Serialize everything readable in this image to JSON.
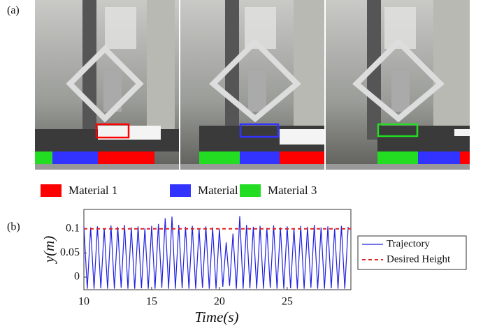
{
  "panel_a": {
    "label": "(a)",
    "legend": [
      {
        "name": "Material 1",
        "color": "#ff0000"
      },
      {
        "name": "Material 2",
        "color": "#3333ff"
      },
      {
        "name": "Material 3",
        "color": "#22dd22"
      }
    ]
  },
  "panel_b": {
    "label": "(b)"
  },
  "chart_data": {
    "type": "line",
    "xlabel": "Time(s)",
    "ylabel": "y(m)",
    "xlim": [
      10,
      29.7
    ],
    "ylim": [
      -0.026,
      0.14
    ],
    "xticks": [
      10,
      15,
      20,
      25
    ],
    "yticks": [
      0,
      0.05,
      0.1
    ],
    "series": [
      {
        "name": "Trajectory",
        "color": "#2020e0",
        "dash": false,
        "x": [
          10,
          10.25,
          10.5,
          10.75,
          11,
          11.25,
          11.5,
          11.75,
          12,
          12.25,
          12.5,
          12.75,
          13,
          13.25,
          13.5,
          13.75,
          14,
          14.25,
          14.5,
          14.75,
          15,
          15.25,
          15.5,
          15.75,
          16,
          16.25,
          16.5,
          16.75,
          17,
          17.25,
          17.5,
          17.75,
          18,
          18.25,
          18.5,
          18.75,
          19,
          19.25,
          19.5,
          19.75,
          20,
          20.25,
          20.5,
          20.75,
          21,
          21.25,
          21.5,
          21.75,
          22,
          22.25,
          22.5,
          22.75,
          23,
          23.25,
          23.5,
          23.75,
          24,
          24.25,
          24.5,
          24.75,
          25,
          25.25,
          25.5,
          25.75,
          26,
          26.25,
          26.5,
          26.75,
          27,
          27.25,
          27.5,
          27.75,
          28,
          28.25,
          28.5,
          28.75,
          29,
          29.25,
          29.5
        ],
        "values": [
          0.105,
          -0.024,
          0.103,
          -0.024,
          0.105,
          -0.023,
          0.1,
          -0.024,
          0.107,
          -0.024,
          0.104,
          -0.022,
          0.108,
          -0.024,
          0.103,
          -0.024,
          0.105,
          -0.023,
          0.101,
          -0.024,
          0.106,
          -0.024,
          0.11,
          -0.022,
          0.122,
          -0.024,
          0.125,
          -0.024,
          0.108,
          -0.023,
          0.104,
          -0.024,
          0.106,
          -0.024,
          0.1,
          -0.022,
          0.105,
          -0.024,
          0.103,
          -0.024,
          0.1,
          -0.02,
          0.072,
          -0.018,
          0.09,
          -0.024,
          0.126,
          -0.024,
          0.108,
          -0.023,
          0.104,
          -0.024,
          0.106,
          -0.024,
          0.102,
          -0.022,
          0.107,
          -0.024,
          0.103,
          -0.024,
          0.105,
          -0.023,
          0.101,
          -0.024,
          0.106,
          -0.024,
          0.104,
          -0.022,
          0.108,
          -0.024,
          0.103,
          -0.024,
          0.105,
          -0.023,
          0.1,
          -0.024,
          0.106,
          -0.024,
          0.104
        ]
      },
      {
        "name": "Desired Height",
        "color": "#e02020",
        "dash": true,
        "x": [
          10,
          29.7
        ],
        "values": [
          0.1,
          0.1
        ]
      }
    ]
  }
}
